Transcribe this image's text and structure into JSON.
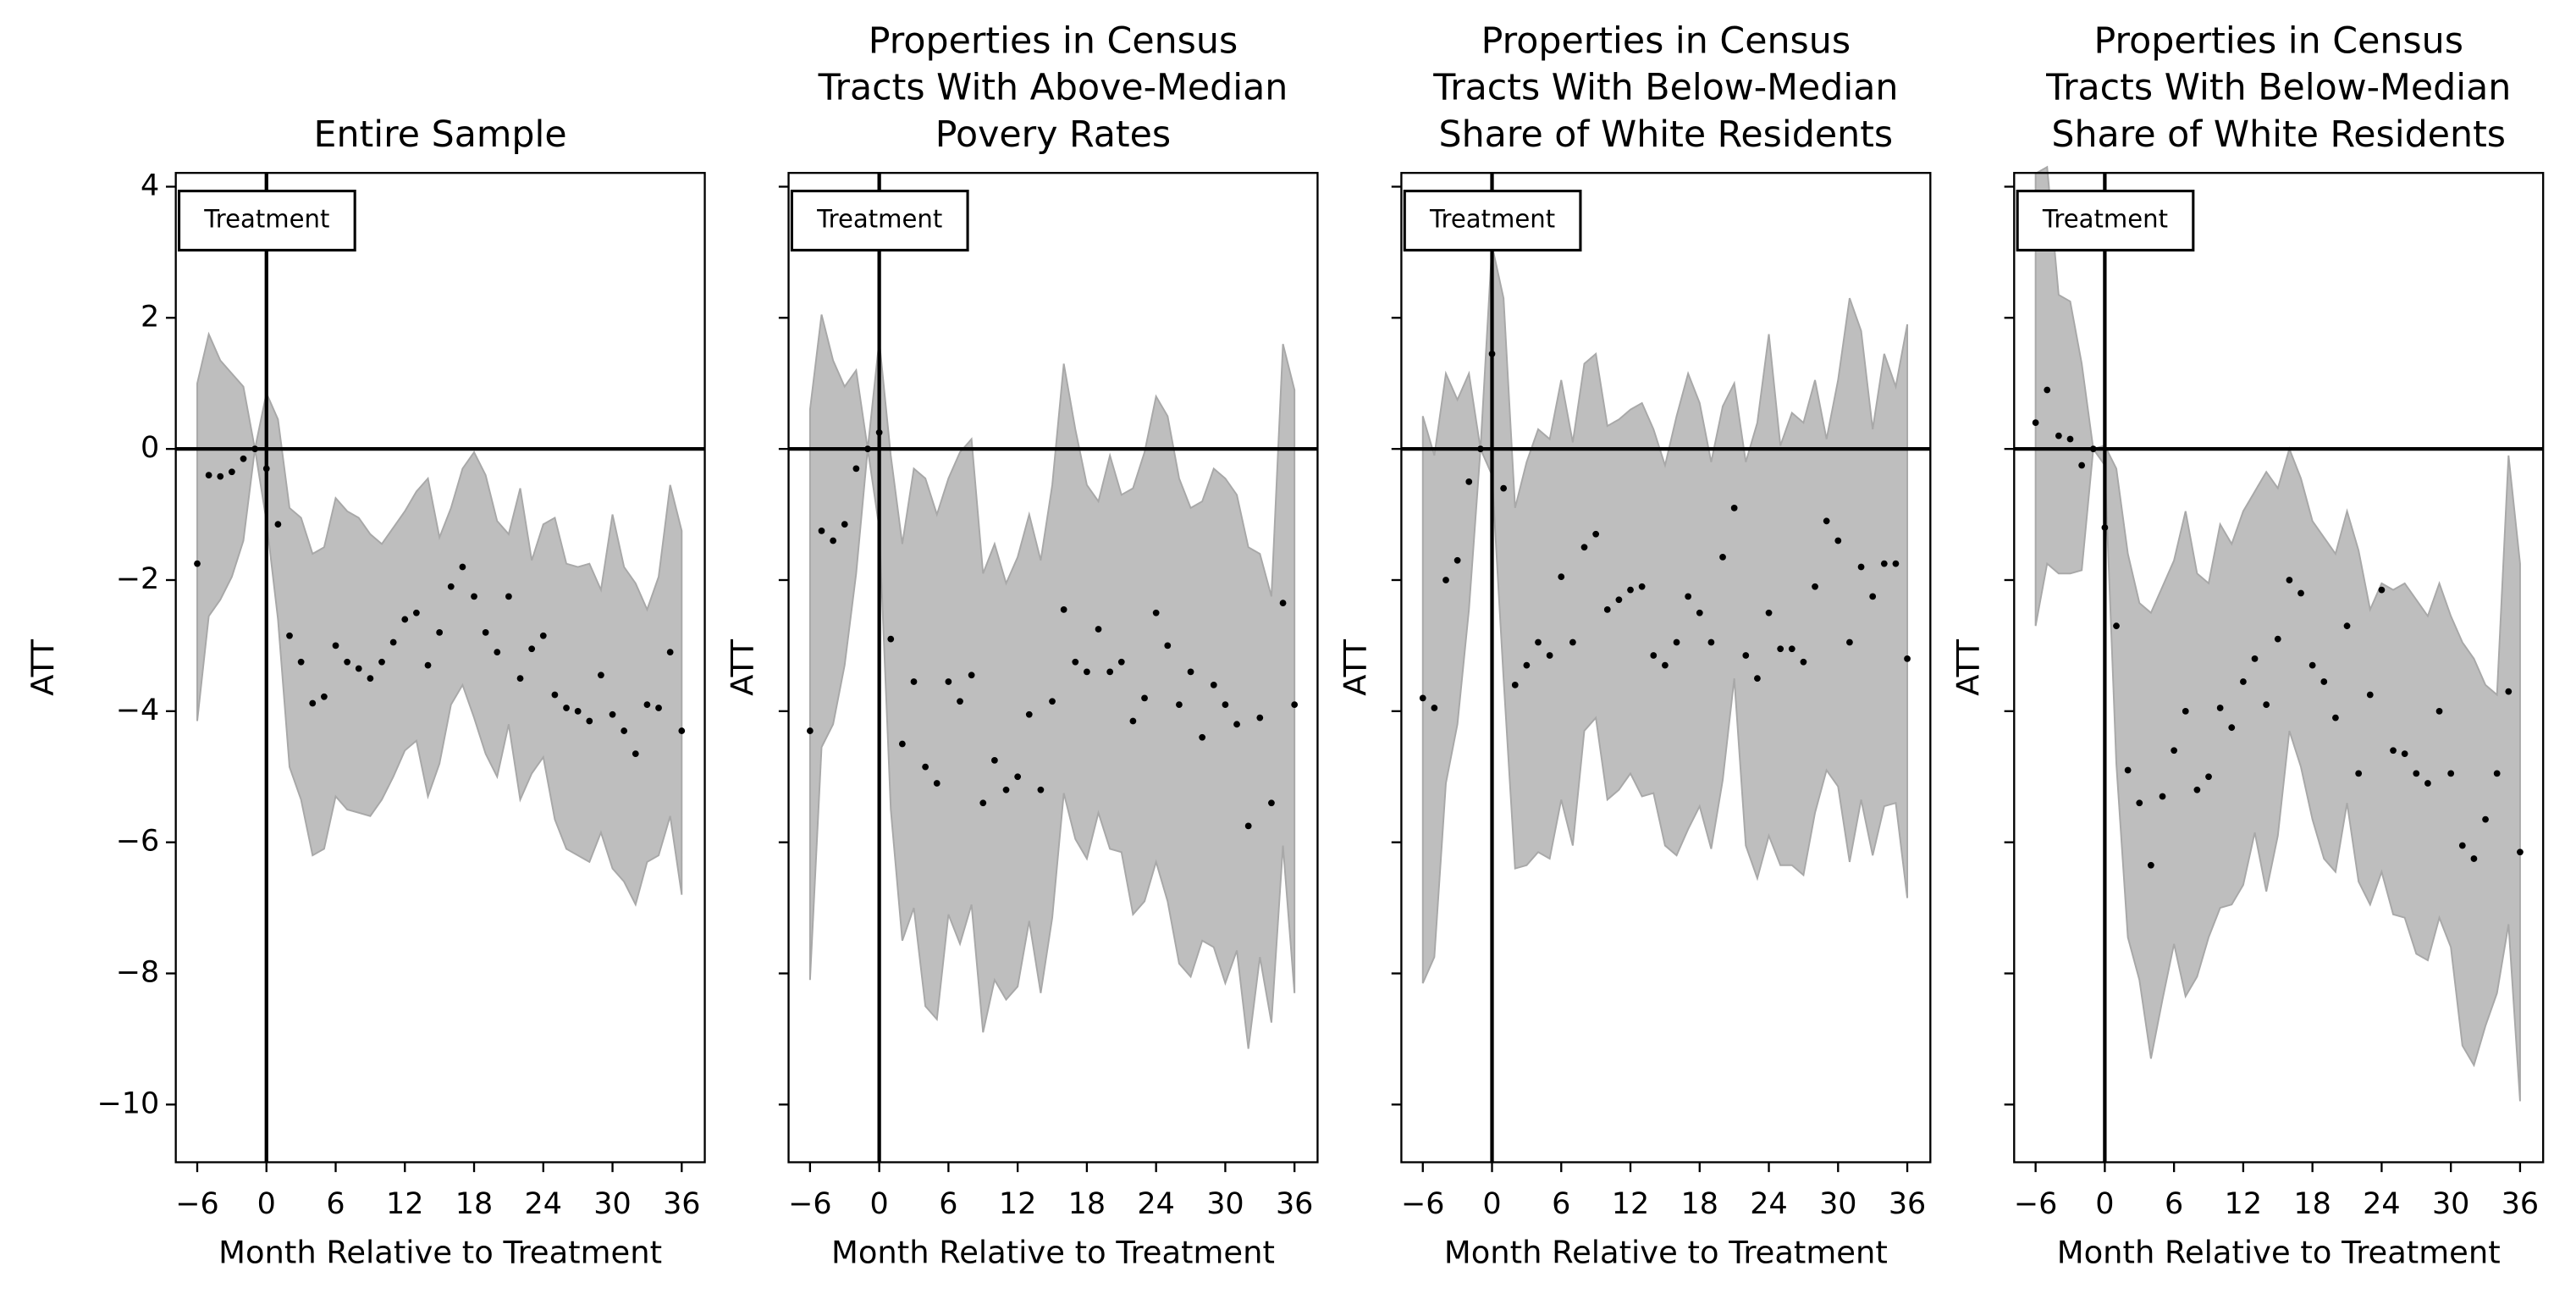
{
  "chart_data": [
    {
      "type": "scatter",
      "title": [
        "Entire Sample"
      ],
      "xlabel": "Month Relative to Treatment",
      "ylabel": "ATT",
      "annotation": "Treatment",
      "x": [
        -6,
        -5,
        -4,
        -3,
        -2,
        -1,
        0,
        1,
        2,
        3,
        4,
        5,
        6,
        7,
        8,
        9,
        10,
        11,
        12,
        13,
        14,
        15,
        16,
        17,
        18,
        19,
        20,
        21,
        22,
        23,
        24,
        25,
        26,
        27,
        28,
        29,
        30,
        31,
        32,
        33,
        34,
        35,
        36
      ],
      "series": [
        {
          "color": "#000000",
          "values": [
            -1.75,
            -0.4,
            -0.42,
            -0.35,
            -0.15,
            0,
            -0.3,
            -1.15,
            -2.85,
            -3.25,
            -3.88,
            -3.78,
            -3.0,
            -3.25,
            -3.35,
            -3.5,
            -3.25,
            -2.95,
            -2.6,
            -2.5,
            -3.3,
            -2.8,
            -2.1,
            -1.8,
            -2.25,
            -2.8,
            -3.1,
            -2.25,
            -3.5,
            -3.05,
            -2.85,
            -3.75,
            -3.95,
            -4.0,
            -4.15,
            -3.45,
            -4.05,
            -4.3,
            -4.65,
            -3.9,
            -3.95,
            -3.1,
            -4.3
          ]
        }
      ],
      "ci_upper": [
        1.0,
        1.75,
        1.35,
        1.15,
        0.95,
        0,
        0.85,
        0.45,
        -0.9,
        -1.05,
        -1.6,
        -1.5,
        -0.75,
        -0.95,
        -1.05,
        -1.3,
        -1.45,
        -1.2,
        -0.95,
        -0.65,
        -0.45,
        -1.35,
        -0.9,
        -0.3,
        -0.05,
        -0.4,
        -1.1,
        -1.3,
        -0.6,
        -1.7,
        -1.15,
        -1.05,
        -1.75,
        -1.8,
        -1.75,
        -2.15,
        -1.0,
        -1.8,
        -2.05,
        -2.45,
        -1.95,
        -0.55,
        -1.25
      ],
      "ci_lower": [
        -4.15,
        -2.55,
        -2.3,
        -1.95,
        -1.4,
        0,
        -1.1,
        -2.6,
        -4.85,
        -5.35,
        -6.2,
        -6.1,
        -5.3,
        -5.5,
        -5.55,
        -5.6,
        -5.35,
        -5.0,
        -4.6,
        -4.45,
        -5.3,
        -4.8,
        -3.9,
        -3.6,
        -4.1,
        -4.65,
        -5.0,
        -4.2,
        -5.35,
        -4.95,
        -4.7,
        -5.65,
        -6.1,
        -6.2,
        -6.3,
        -5.85,
        -6.4,
        -6.6,
        -6.95,
        -6.3,
        -6.2,
        -5.6,
        -6.8
      ],
      "band_color": "#bebebe",
      "ref_x": 0,
      "ref_y": 0,
      "xlim": [
        -7.86,
        38.0
      ],
      "ylim": [
        -10.88,
        4.21
      ],
      "xticks": [
        {
          "value": -6,
          "label": "−6"
        },
        0,
        6,
        12,
        18,
        24,
        30,
        36
      ],
      "yticks": [
        {
          "value": -10,
          "label": "−10"
        },
        {
          "value": -8,
          "label": "−8"
        },
        {
          "value": -6,
          "label": "−6"
        },
        {
          "value": -4,
          "label": "−4"
        },
        {
          "value": -2,
          "label": "−2"
        },
        0,
        2,
        4
      ],
      "ytick_labels": true
    },
    {
      "type": "scatter",
      "title": [
        "Properties in Census",
        "Tracts With Above-Median",
        "Povery Rates"
      ],
      "xlabel": "Month Relative to Treatment",
      "ylabel": "ATT",
      "annotation": "Treatment",
      "x": [
        -6,
        -5,
        -4,
        -3,
        -2,
        -1,
        0,
        1,
        2,
        3,
        4,
        5,
        6,
        7,
        8,
        9,
        10,
        11,
        12,
        13,
        14,
        15,
        16,
        17,
        18,
        19,
        20,
        21,
        22,
        23,
        24,
        25,
        26,
        27,
        28,
        29,
        30,
        31,
        32,
        33,
        34,
        35,
        36
      ],
      "series": [
        {
          "color": "#000000",
          "values": [
            -4.3,
            -1.25,
            -1.4,
            -1.15,
            -0.3,
            0,
            0.25,
            -2.9,
            -4.5,
            -3.55,
            -4.85,
            -5.1,
            -3.55,
            -3.85,
            -3.45,
            -5.4,
            -4.75,
            -5.2,
            -5.0,
            -4.05,
            -5.2,
            -3.85,
            -2.45,
            -3.25,
            -3.4,
            -2.75,
            -3.4,
            -3.25,
            -4.15,
            -3.8,
            -2.5,
            -3.0,
            -3.9,
            -3.4,
            -4.4,
            -3.6,
            -3.9,
            -4.2,
            -5.75,
            -4.1,
            -5.4,
            -2.35,
            -3.9
          ]
        }
      ],
      "ci_upper": [
        0.6,
        2.05,
        1.35,
        0.95,
        1.2,
        0,
        1.65,
        -0.1,
        -1.45,
        -0.3,
        -0.45,
        -1.0,
        -0.45,
        -0.05,
        0.15,
        -1.9,
        -1.45,
        -2.05,
        -1.65,
        -1.0,
        -1.7,
        -0.55,
        1.3,
        0.3,
        -0.55,
        -0.8,
        -0.1,
        -0.7,
        -0.6,
        -0.05,
        0.8,
        0.5,
        -0.45,
        -0.9,
        -0.8,
        -0.3,
        -0.45,
        -0.7,
        -1.5,
        -1.6,
        -2.25,
        1.6,
        0.9
      ],
      "ci_lower": [
        -8.1,
        -4.55,
        -4.2,
        -3.3,
        -1.9,
        0,
        -1.2,
        -5.5,
        -7.5,
        -7.0,
        -8.5,
        -8.7,
        -7.1,
        -7.55,
        -6.95,
        -8.9,
        -8.1,
        -8.4,
        -8.2,
        -7.2,
        -8.3,
        -7.15,
        -5.25,
        -5.95,
        -6.25,
        -5.55,
        -6.1,
        -6.15,
        -7.1,
        -6.9,
        -6.3,
        -6.9,
        -7.85,
        -8.05,
        -7.5,
        -7.6,
        -8.15,
        -7.65,
        -9.15,
        -7.75,
        -8.75,
        -6.05,
        -8.3
      ],
      "band_color": "#bebebe",
      "ref_x": 0,
      "ref_y": 0,
      "xlim": [
        -7.86,
        38.0
      ],
      "ylim": [
        -10.88,
        4.21
      ],
      "xticks": [
        {
          "value": -6,
          "label": "−6"
        },
        0,
        6,
        12,
        18,
        24,
        30,
        36
      ],
      "yticks": [
        -10,
        -8,
        -6,
        -4,
        -2,
        0,
        2,
        4
      ],
      "ytick_labels": false
    },
    {
      "type": "scatter",
      "title": [
        "Properties in Census",
        "Tracts With Below-Median",
        "Share of White Residents"
      ],
      "xlabel": "Month Relative to Treatment",
      "ylabel": "ATT",
      "annotation": "Treatment",
      "x": [
        -6,
        -5,
        -4,
        -3,
        -2,
        -1,
        0,
        1,
        2,
        3,
        4,
        5,
        6,
        7,
        8,
        9,
        10,
        11,
        12,
        13,
        14,
        15,
        16,
        17,
        18,
        19,
        20,
        21,
        22,
        23,
        24,
        25,
        26,
        27,
        28,
        29,
        30,
        31,
        32,
        33,
        34,
        35,
        36
      ],
      "series": [
        {
          "color": "#000000",
          "values": [
            -3.8,
            -3.95,
            -2.0,
            -1.7,
            -0.5,
            0,
            1.45,
            -0.6,
            -3.6,
            -3.3,
            -2.95,
            -3.15,
            -1.95,
            -2.95,
            -1.5,
            -1.3,
            -2.45,
            -2.3,
            -2.15,
            -2.1,
            -3.15,
            -3.3,
            -2.95,
            -2.25,
            -2.5,
            -2.95,
            -1.65,
            -0.9,
            -3.15,
            -3.5,
            -2.5,
            -3.05,
            -3.05,
            -3.25,
            -2.1,
            -1.1,
            -1.4,
            -2.95,
            -1.8,
            -2.25,
            -1.75,
            -1.75,
            -3.2
          ]
        }
      ],
      "ci_upper": [
        0.5,
        -0.1,
        1.15,
        0.75,
        1.15,
        0,
        3.1,
        2.3,
        -0.9,
        -0.2,
        0.3,
        0.15,
        1.05,
        0.1,
        1.3,
        1.45,
        0.35,
        0.45,
        0.6,
        0.7,
        0.3,
        -0.25,
        0.5,
        1.15,
        0.7,
        -0.2,
        0.65,
        1.0,
        -0.2,
        0.4,
        1.75,
        0.05,
        0.55,
        0.4,
        1.05,
        0.15,
        1.05,
        2.3,
        1.8,
        0.3,
        1.45,
        0.95,
        1.9
      ],
      "ci_lower": [
        -8.15,
        -7.75,
        -5.1,
        -4.2,
        -2.45,
        0,
        -0.4,
        -3.5,
        -6.4,
        -6.35,
        -6.15,
        -6.25,
        -5.35,
        -6.05,
        -4.3,
        -4.1,
        -5.35,
        -5.2,
        -4.95,
        -5.3,
        -5.25,
        -6.05,
        -6.2,
        -5.8,
        -5.45,
        -6.1,
        -5.05,
        -3.5,
        -6.05,
        -6.55,
        -5.9,
        -6.35,
        -6.35,
        -6.5,
        -5.55,
        -4.9,
        -5.15,
        -6.3,
        -5.35,
        -6.2,
        -5.45,
        -5.4,
        -6.85
      ],
      "band_color": "#bebebe",
      "ref_x": 0,
      "ref_y": 0,
      "xlim": [
        -7.86,
        38.0
      ],
      "ylim": [
        -10.88,
        4.21
      ],
      "xticks": [
        {
          "value": -6,
          "label": "−6"
        },
        0,
        6,
        12,
        18,
        24,
        30,
        36
      ],
      "yticks": [
        -10,
        -8,
        -6,
        -4,
        -2,
        0,
        2,
        4
      ],
      "ytick_labels": false
    },
    {
      "type": "scatter",
      "title": [
        "Properties in Census",
        "Tracts With Below-Median",
        "Share of White Residents"
      ],
      "xlabel": "Month Relative to Treatment",
      "ylabel": "ATT",
      "annotation": "Treatment",
      "x": [
        -6,
        -5,
        -4,
        -3,
        -2,
        -1,
        0,
        1,
        2,
        3,
        4,
        5,
        6,
        7,
        8,
        9,
        10,
        11,
        12,
        13,
        14,
        15,
        16,
        17,
        18,
        19,
        20,
        21,
        22,
        23,
        24,
        25,
        26,
        27,
        28,
        29,
        30,
        31,
        32,
        33,
        34,
        35,
        36
      ],
      "series": [
        {
          "color": "#000000",
          "values": [
            0.4,
            0.9,
            0.2,
            0.15,
            -0.25,
            0,
            -1.2,
            -2.7,
            -4.9,
            -5.4,
            -6.35,
            -5.3,
            -4.6,
            -4.0,
            -5.2,
            -5.0,
            -3.95,
            -4.25,
            -3.55,
            -3.2,
            -3.9,
            -2.9,
            -2.0,
            -2.2,
            -3.3,
            -3.55,
            -4.1,
            -2.7,
            -4.95,
            -3.75,
            -2.15,
            -4.6,
            -4.65,
            -4.95,
            -5.1,
            -4.0,
            -4.95,
            -6.05,
            -6.25,
            -5.65,
            -4.95,
            -3.7,
            -6.15
          ]
        }
      ],
      "ci_upper": [
        4.2,
        4.3,
        2.35,
        2.25,
        1.3,
        0,
        0.05,
        -0.3,
        -1.6,
        -2.35,
        -2.5,
        -2.1,
        -1.7,
        -0.95,
        -1.9,
        -2.05,
        -1.15,
        -1.45,
        -0.95,
        -0.65,
        -0.35,
        -0.6,
        0.0,
        -0.45,
        -1.1,
        -1.35,
        -1.6,
        -0.95,
        -1.55,
        -2.45,
        -2.05,
        -2.15,
        -2.05,
        -2.3,
        -2.55,
        -2.05,
        -2.55,
        -2.95,
        -3.2,
        -3.6,
        -3.75,
        -0.1,
        -1.75
      ],
      "ci_lower": [
        -2.7,
        -1.75,
        -1.9,
        -1.9,
        -1.85,
        0,
        -0.25,
        -4.8,
        -7.45,
        -8.1,
        -9.3,
        -8.4,
        -7.55,
        -8.35,
        -8.05,
        -7.45,
        -7.0,
        -6.95,
        -6.65,
        -5.85,
        -6.75,
        -5.9,
        -4.3,
        -4.85,
        -5.65,
        -6.25,
        -6.45,
        -5.4,
        -6.6,
        -6.95,
        -6.45,
        -7.1,
        -7.15,
        -7.7,
        -7.8,
        -7.15,
        -7.6,
        -9.1,
        -9.4,
        -8.8,
        -8.3,
        -7.25,
        -9.95
      ],
      "band_color": "#bebebe",
      "ref_x": 0,
      "ref_y": 0,
      "xlim": [
        -7.86,
        38.0
      ],
      "ylim": [
        -10.88,
        4.21
      ],
      "xticks": [
        {
          "value": -6,
          "label": "−6"
        },
        0,
        6,
        12,
        18,
        24,
        30,
        36
      ],
      "yticks": [
        -10,
        -8,
        -6,
        -4,
        -2,
        0,
        2,
        4
      ],
      "ytick_labels": false
    }
  ]
}
